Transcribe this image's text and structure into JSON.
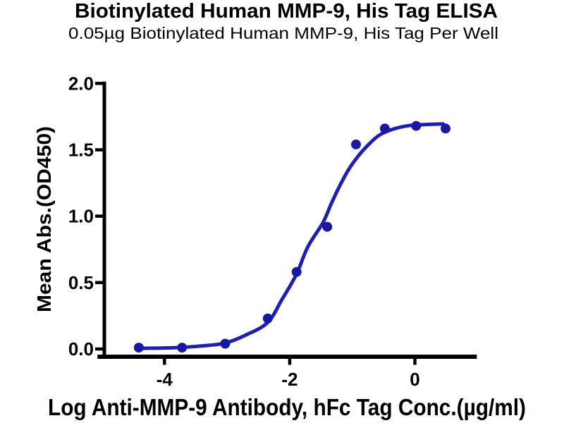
{
  "chart_data": {
    "type": "scatter",
    "title": "Biotinylated Human MMP-9, His Tag ELISA",
    "subtitle": "0.05µg Biotinylated Human MMP-9, His Tag Per Well",
    "xlabel": "Log Anti-MMP-9 Antibody, hFc Tag Conc.(µg/ml)",
    "ylabel": "Mean Abs.(OD450)",
    "xlim": [
      -5.07,
      0.99
    ],
    "ylim": [
      0,
      2.0
    ],
    "grid": false,
    "legend": "none",
    "x_ticks": [
      {
        "value": -4,
        "label": "-4"
      },
      {
        "value": -2,
        "label": "-2"
      },
      {
        "value": 0,
        "label": "0"
      }
    ],
    "y_ticks": [
      {
        "value": 0.0,
        "label": "0.0"
      },
      {
        "value": 0.5,
        "label": "0.5"
      },
      {
        "value": 1.0,
        "label": "1.0"
      },
      {
        "value": 1.5,
        "label": "1.5"
      },
      {
        "value": 2.0,
        "label": "2.0"
      }
    ],
    "series": [
      {
        "marker": "circle",
        "x": [
          -4.41,
          -3.72,
          -3.03,
          -2.35,
          -1.89,
          -1.4,
          -0.94,
          -0.48,
          0.02,
          0.49
        ],
        "y": [
          0.01,
          0.01,
          0.04,
          0.23,
          0.58,
          0.92,
          1.54,
          1.66,
          1.68,
          1.66
        ]
      }
    ],
    "fit_curve": {
      "x": [
        -4.41,
        -4.05,
        -3.72,
        -3.35,
        -3.03,
        -2.7,
        -2.35,
        -2.12,
        -1.89,
        -1.71,
        -1.47,
        -1.34,
        -1.21,
        -1.06,
        -0.91,
        -0.76,
        -0.57,
        -0.35,
        -0.1,
        0.15,
        0.45
      ],
      "y": [
        0.005,
        0.007,
        0.012,
        0.025,
        0.045,
        0.105,
        0.2,
        0.375,
        0.565,
        0.77,
        0.95,
        1.09,
        1.22,
        1.35,
        1.45,
        1.53,
        1.61,
        1.655,
        1.682,
        1.69,
        1.695
      ]
    },
    "colors": {
      "marker": "#1919a0",
      "line": "#2020b0",
      "axis": "#000000",
      "text": "#000000",
      "background": "#ffffff"
    }
  }
}
